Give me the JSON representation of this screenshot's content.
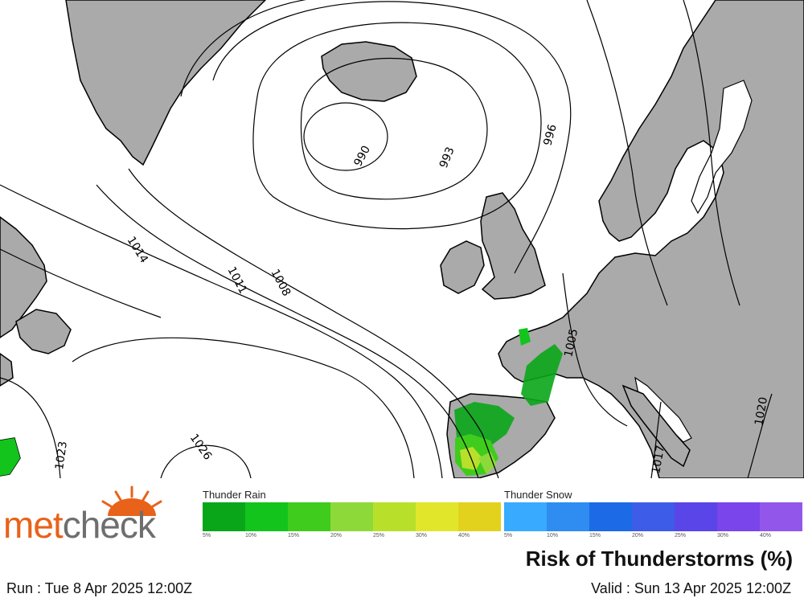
{
  "map": {
    "isobar_labels": [
      "990",
      "993",
      "996",
      "1014",
      "1011",
      "1008",
      "1005",
      "1023",
      "1026",
      "1017",
      "1020"
    ]
  },
  "logo": {
    "part1": "met",
    "part2": "check",
    "sun_icon": "sun-rays-icon"
  },
  "legend": {
    "rain_title": "Thunder Rain",
    "snow_title": "Thunder Snow",
    "rain_colors": [
      "#0aa61a",
      "#12c41c",
      "#3fcc1c",
      "#8ed93a",
      "#b8e02a",
      "#e2e62a",
      "#e2d21e"
    ],
    "snow_colors": [
      "#38aaff",
      "#2f8cf0",
      "#1c6ae6",
      "#3d5de9",
      "#5945e8",
      "#7a45ea",
      "#9257ea"
    ],
    "rain_ticks": [
      "5%",
      "10%",
      "15%",
      "20%",
      "25%",
      "30%",
      "40%"
    ],
    "snow_ticks": [
      "5%",
      "10%",
      "15%",
      "20%",
      "25%",
      "30%",
      "40%"
    ]
  },
  "title": "Risk of Thunderstorms (%)",
  "run": "Run : Tue 8 Apr 2025 12:00Z",
  "valid": "Valid : Sun 13 Apr 2025 12:00Z",
  "colors": {
    "land": "#aaaaaa",
    "sea": "#ffffff",
    "coast": "#000000"
  }
}
